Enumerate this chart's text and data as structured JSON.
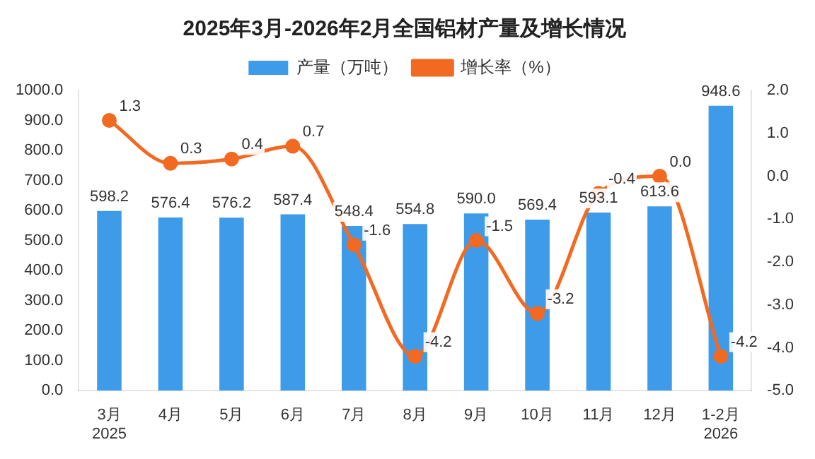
{
  "chart_data": {
    "type": "bar",
    "title": "2025年3月-2026年2月全国铝材产量及增长情况",
    "categories": [
      "3月\n2025",
      "4月",
      "5月",
      "6月",
      "7月",
      "8月",
      "9月",
      "10月",
      "11月",
      "12月",
      "1-2月\n2026"
    ],
    "series": [
      {
        "name": "产量（万吨）",
        "color": "#3d9be9",
        "values": [
          598.2,
          576.4,
          576.2,
          587.4,
          548.4,
          554.8,
          590.0,
          569.4,
          593.1,
          613.6,
          948.6
        ],
        "value_labels": [
          "598.2",
          "576.4",
          "576.2",
          "587.4",
          "548.4",
          "554.8",
          "590.0",
          "569.4",
          "593.1",
          "613.6",
          "948.6"
        ]
      },
      {
        "name": "增长率（%）",
        "type": "line",
        "axis": "y2",
        "color": "#f26a21",
        "values": [
          1.3,
          0.3,
          0.4,
          0.7,
          -1.6,
          -4.2,
          -1.5,
          -3.2,
          -0.4,
          0.0,
          -4.2
        ],
        "value_labels": [
          "1.3",
          "0.3",
          "0.4",
          "0.7",
          "-1.6",
          "-4.2",
          "-1.5",
          "-3.2",
          "-0.4",
          "0.0",
          "-4.2"
        ]
      }
    ],
    "ylim": [
      0,
      1000
    ],
    "yticks": [
      {
        "value": 0,
        "label": "0.0"
      },
      {
        "value": 100,
        "label": "100.0"
      },
      {
        "value": 200,
        "label": "200.0"
      },
      {
        "value": 300,
        "label": "300.0"
      },
      {
        "value": 400,
        "label": "400.0"
      },
      {
        "value": 500,
        "label": "500.0"
      },
      {
        "value": 600,
        "label": "600.0"
      },
      {
        "value": 700,
        "label": "700.0"
      },
      {
        "value": 800,
        "label": "800.0"
      },
      {
        "value": 900,
        "label": "900.0"
      },
      {
        "value": 1000,
        "label": "1000.0"
      }
    ],
    "y2lim": [
      -5,
      2
    ],
    "y2ticks": [
      {
        "value": -5,
        "label": "-5.0"
      },
      {
        "value": -4,
        "label": "-4.0"
      },
      {
        "value": -3,
        "label": "-3.0"
      },
      {
        "value": -2,
        "label": "-2.0"
      },
      {
        "value": -1,
        "label": "-1.0"
      },
      {
        "value": 0,
        "label": "0.0"
      },
      {
        "value": 1,
        "label": "1.0"
      },
      {
        "value": 2,
        "label": "2.0"
      }
    ],
    "legend": "top",
    "marker": "circle",
    "grid": false
  }
}
